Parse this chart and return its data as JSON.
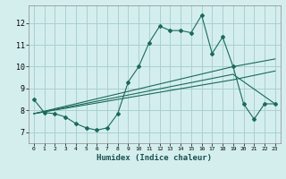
{
  "xlabel": "Humidex (Indice chaleur)",
  "background_color": "#d4eeee",
  "grid_color": "#aad0d0",
  "line_color": "#1a6b5a",
  "xlim": [
    -0.5,
    23.5
  ],
  "ylim": [
    6.5,
    12.8
  ],
  "yticks": [
    7,
    8,
    9,
    10,
    11,
    12
  ],
  "xticks": [
    0,
    1,
    2,
    3,
    4,
    5,
    6,
    7,
    8,
    9,
    10,
    11,
    12,
    13,
    14,
    15,
    16,
    17,
    18,
    19,
    20,
    21,
    22,
    23
  ],
  "line1_x": [
    0,
    1,
    2,
    3,
    4,
    5,
    6,
    7,
    8,
    9,
    10,
    11,
    12,
    13,
    14,
    15,
    16,
    17,
    18,
    19,
    20,
    21,
    22,
    23
  ],
  "line1_y": [
    8.5,
    7.9,
    7.85,
    7.7,
    7.4,
    7.2,
    7.1,
    7.2,
    7.85,
    9.3,
    10.0,
    11.1,
    11.85,
    11.65,
    11.65,
    11.55,
    12.35,
    10.6,
    11.35,
    10.0,
    8.3,
    7.6,
    8.3,
    8.3
  ],
  "line2_x": [
    0,
    19,
    23
  ],
  "line2_y": [
    7.85,
    10.0,
    10.35
  ],
  "line3_x": [
    0,
    19,
    23
  ],
  "line3_y": [
    7.85,
    9.65,
    8.3
  ],
  "line4_x": [
    0,
    19,
    23
  ],
  "line4_y": [
    7.85,
    9.4,
    9.8
  ]
}
